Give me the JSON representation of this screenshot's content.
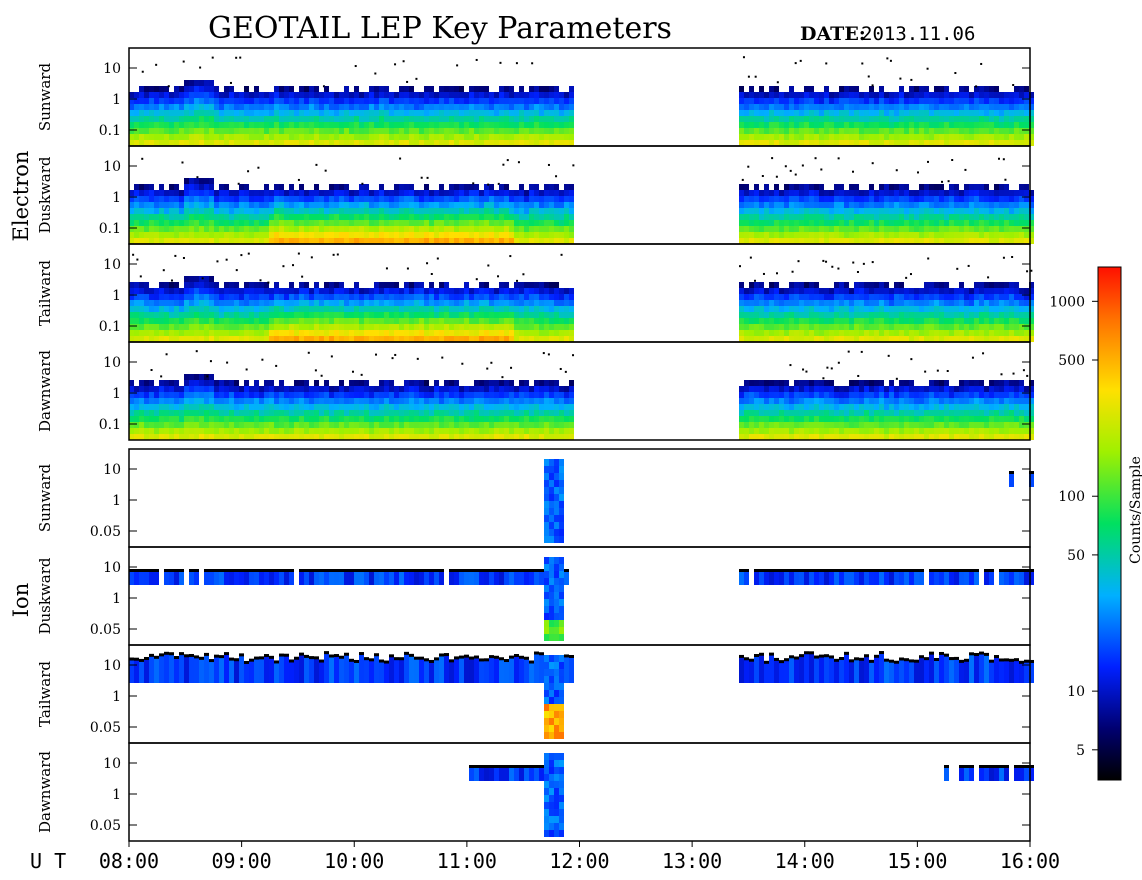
{
  "header": {
    "title": "GEOTAIL LEP Key Parameters",
    "date_label": "DATE:",
    "date_value": "2013.11.06"
  },
  "chart_data": {
    "type": "heatmap",
    "groups": [
      {
        "name": "Electron",
        "panels": [
          {
            "name": "Sunward",
            "yticks": [
              "10",
              "1",
              "0.1"
            ]
          },
          {
            "name": "Duskward",
            "yticks": [
              "10",
              "1",
              "0.1"
            ]
          },
          {
            "name": "Tailward",
            "yticks": [
              "10",
              "1",
              "0.1"
            ]
          },
          {
            "name": "Dawnward",
            "yticks": [
              "10",
              "1",
              "0.1"
            ]
          }
        ]
      },
      {
        "name": "Ion",
        "panels": [
          {
            "name": "Sunward",
            "yticks": [
              "10",
              "1",
              "0.05"
            ]
          },
          {
            "name": "Duskward",
            "yticks": [
              "10",
              "1",
              "0.05"
            ]
          },
          {
            "name": "Tailward",
            "yticks": [
              "10",
              "1",
              "0.05"
            ]
          },
          {
            "name": "Dawnward",
            "yticks": [
              "10",
              "1",
              "0.05"
            ]
          }
        ]
      }
    ],
    "x_axis": {
      "label": "U T",
      "ticks": [
        "08:00",
        "09:00",
        "10:00",
        "11:00",
        "12:00",
        "13:00",
        "14:00",
        "15:00",
        "16:00"
      ],
      "range_hours": [
        8,
        16
      ]
    },
    "data_gaps": [
      [
        11.93,
        13.38
      ]
    ],
    "colorbar": {
      "label": "Counts/Sample",
      "scale": "log",
      "range": [
        3.5,
        1500
      ],
      "ticks": [
        "1000",
        "500",
        "100",
        "50",
        "10",
        "5"
      ]
    }
  }
}
